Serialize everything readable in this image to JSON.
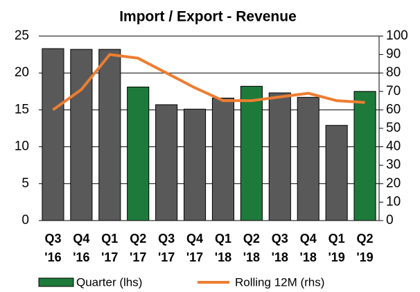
{
  "chart_data": {
    "type": "bar_line",
    "title": "Import / Export - Revenue",
    "categories": [
      [
        "Q3",
        "'16"
      ],
      [
        "Q4",
        "'16"
      ],
      [
        "Q1",
        "'17"
      ],
      [
        "Q2",
        "'17"
      ],
      [
        "Q3",
        "'17"
      ],
      [
        "Q4",
        "'17"
      ],
      [
        "Q1",
        "'18"
      ],
      [
        "Q2",
        "'18"
      ],
      [
        "Q3",
        "'18"
      ],
      [
        "Q4",
        "'18"
      ],
      [
        "Q1",
        "'19"
      ],
      [
        "Q2",
        "'19"
      ]
    ],
    "series": [
      {
        "name": "Quarter (lhs)",
        "type": "bar",
        "color": "#1e7a3a",
        "colors": [
          "#595959",
          "#595959",
          "#595959",
          "#1e7a3a",
          "#595959",
          "#595959",
          "#595959",
          "#1e7a3a",
          "#595959",
          "#595959",
          "#595959",
          "#1e7a3a"
        ],
        "values": [
          23.3,
          23.2,
          23.2,
          18.1,
          15.7,
          15.1,
          16.6,
          18.2,
          17.3,
          16.7,
          12.9,
          17.5
        ]
      },
      {
        "name": "Rolling 12M (rhs)",
        "type": "line",
        "axis": "y2",
        "color": "#ed7d31",
        "values": [
          60,
          71,
          90,
          88,
          80,
          72,
          65,
          65,
          67,
          69,
          65,
          64
        ]
      }
    ],
    "ylim": [
      0,
      25
    ],
    "yticks": [
      0,
      5,
      10,
      15,
      20,
      25
    ],
    "y2lim": [
      0,
      100
    ],
    "y2ticks": [
      0,
      10,
      20,
      30,
      40,
      50,
      60,
      70,
      80,
      90,
      100
    ],
    "grid": true
  }
}
